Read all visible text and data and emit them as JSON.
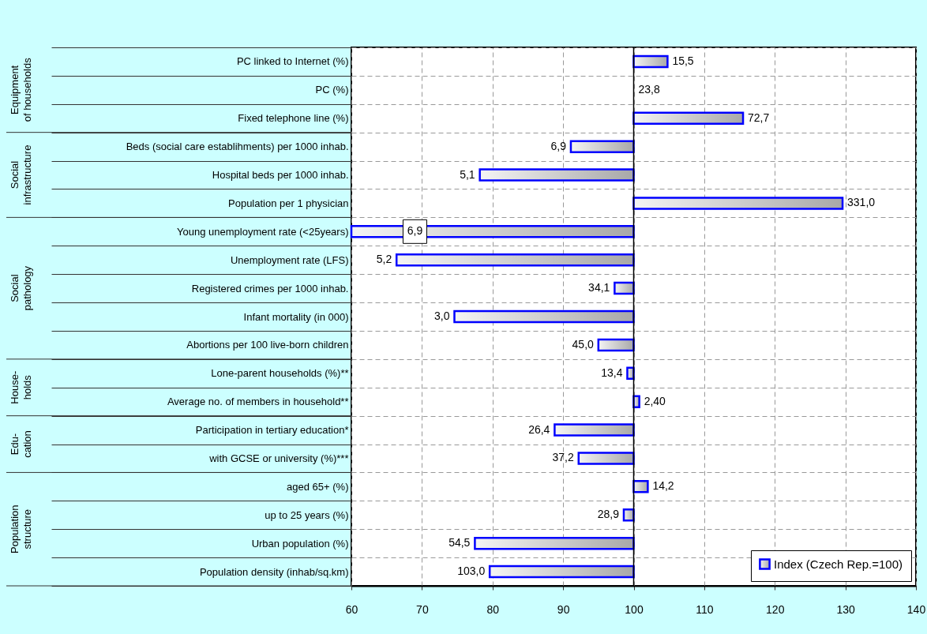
{
  "chart_data": {
    "type": "bar",
    "orientation": "horizontal",
    "categories": [
      "PC linked to Internet (%)",
      "PC (%)",
      "Fixed telephone line (%)",
      "Beds (social care establihments) per 1000 inhab.",
      "Hospital beds per 1000 inhab.",
      "Population per 1 physician",
      "Young unemployment rate (<25years)",
      "Unemployment rate (LFS)",
      "Registered crimes per 1000 inhab.",
      "Infant mortality (in 000)",
      "Abortions per 100 live-born children",
      "Lone-parent households  (%)**",
      "Average no. of members in household**",
      "Participation in tertiary education*",
      "with GCSE or university  (%)***",
      "aged 65+ (%)",
      "up to 25 years (%)",
      "Urban population (%)",
      "Population density (inhab/sq.km)"
    ],
    "series": [
      {
        "name": "Index (Czech Rep.=100)",
        "color": "#0000ff",
        "base": [
          100,
          null,
          100,
          100,
          100,
          100,
          100,
          100,
          100,
          100,
          100,
          100,
          100,
          100,
          100,
          100,
          100,
          100,
          100
        ],
        "values": [
          4.8,
          null,
          15.5,
          -8.9,
          -21.8,
          29.6,
          -40,
          -33.6,
          -2.7,
          -25.4,
          -5.0,
          -0.9,
          0.8,
          -11.2,
          -7.8,
          2.0,
          -1.4,
          -22.5,
          -20.4
        ]
      }
    ],
    "xlim": [
      60,
      140
    ],
    "xticks": [
      60,
      70,
      80,
      90,
      100,
      110,
      120,
      130,
      140
    ],
    "ref_lines": [
      {
        "axis": "x",
        "value": 100,
        "color": "#000000"
      }
    ],
    "annotations": [
      "Equipment of households",
      "Social infrastructure",
      "Social pathology",
      "House-holds",
      "Edu-cation",
      "Population structure",
      {
        "text": "15,5",
        "x": 104.8,
        "y": "PC linked to Internet (%)"
      },
      {
        "text": "23,8",
        "x": 100,
        "y": "PC (%)"
      },
      {
        "text": "72,7",
        "x": 115.5,
        "y": "Fixed telephone line (%)"
      },
      {
        "text": "6,9",
        "x": 91.1,
        "y": "Beds (social care establihments) per 1000 inhab."
      },
      {
        "text": "5,1",
        "x": 78.2,
        "y": "Hospital beds per 1000 inhab."
      },
      {
        "text": "331,0",
        "x": 129.6,
        "y": "Population per 1 physician"
      },
      {
        "text": "6,9",
        "x": 69,
        "y": "Young unemployment rate (<25years)"
      },
      {
        "text": "5,2",
        "x": 66.4,
        "y": "Unemployment rate (LFS)"
      },
      {
        "text": "34,1",
        "x": 97.3,
        "y": "Registered crimes per 1000 inhab."
      },
      {
        "text": "3,0",
        "x": 74.6,
        "y": "Infant mortality (in 000)"
      },
      {
        "text": "45,0",
        "x": 95.0,
        "y": "Abortions per 100 live-born children"
      },
      {
        "text": "13,4",
        "x": 99.1,
        "y": "Lone-parent households  (%)**"
      },
      {
        "text": "2,40",
        "x": 100.8,
        "y": "Average no. of members in household**"
      },
      {
        "text": "26,4",
        "x": 88.8,
        "y": "Participation in tertiary education*"
      },
      {
        "text": "37,2",
        "x": 92.2,
        "y": "with GCSE or university  (%)***"
      },
      {
        "text": "14,2",
        "x": 102.0,
        "y": "aged 65+ (%)"
      },
      {
        "text": "28,9",
        "x": 98.6,
        "y": "up to 25 years (%)"
      },
      {
        "text": "54,5",
        "x": 77.5,
        "y": "Urban population (%)"
      },
      {
        "text": "103,0",
        "x": 79.6,
        "y": "Population density (inhab/sq.km)"
      }
    ],
    "grid": true,
    "legend": "bottom right"
  }
}
